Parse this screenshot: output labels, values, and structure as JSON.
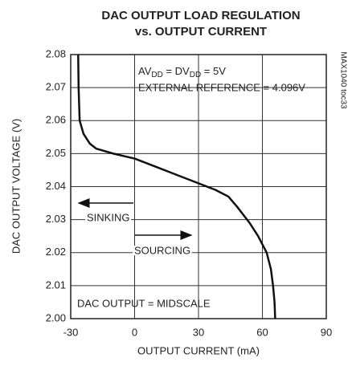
{
  "chart_data": {
    "type": "line",
    "title": [
      "DAC OUTPUT LOAD REGULATION",
      "vs. OUTPUT CURRENT"
    ],
    "xlabel": "OUTPUT CURRENT (mA)",
    "ylabel": "DAC OUTPUT VOLTAGE (V)",
    "supply_note": [
      "AV",
      "DD",
      " = DV",
      "DD",
      " = 5V"
    ],
    "reference_note": "EXTERNAL REFERENCE = 4.096V",
    "sinking_label": "SINKING",
    "sourcing_label": "SOURCING",
    "midscale_note": "DAC OUTPUT = MIDSCALE",
    "figure_id": "MAX1040 toc33",
    "x": [
      -26.5,
      -26.3,
      -25.8,
      -24,
      -21,
      -18,
      -10,
      0,
      10,
      20,
      30,
      38,
      44,
      48,
      54,
      58,
      62,
      64,
      65,
      65.7,
      66
    ],
    "series": [
      {
        "color": "#111111",
        "values": [
          2.08,
          2.07,
          2.06,
          2.056,
          2.053,
          2.0515,
          2.05,
          2.0485,
          2.046,
          2.0435,
          2.041,
          2.039,
          2.037,
          2.034,
          2.029,
          2.025,
          2.02,
          2.015,
          2.01,
          2.005,
          2.0
        ]
      }
    ],
    "xlim": [
      -30,
      90
    ],
    "xticks": [
      -30,
      0,
      30,
      60,
      90
    ],
    "ylim": [
      2.0,
      2.08
    ],
    "yticks": [
      {
        "value": 2.0,
        "label": "2.00"
      },
      2.01,
      2.02,
      2.03,
      2.04,
      2.05,
      2.06,
      2.07,
      2.08
    ],
    "grid": true
  }
}
